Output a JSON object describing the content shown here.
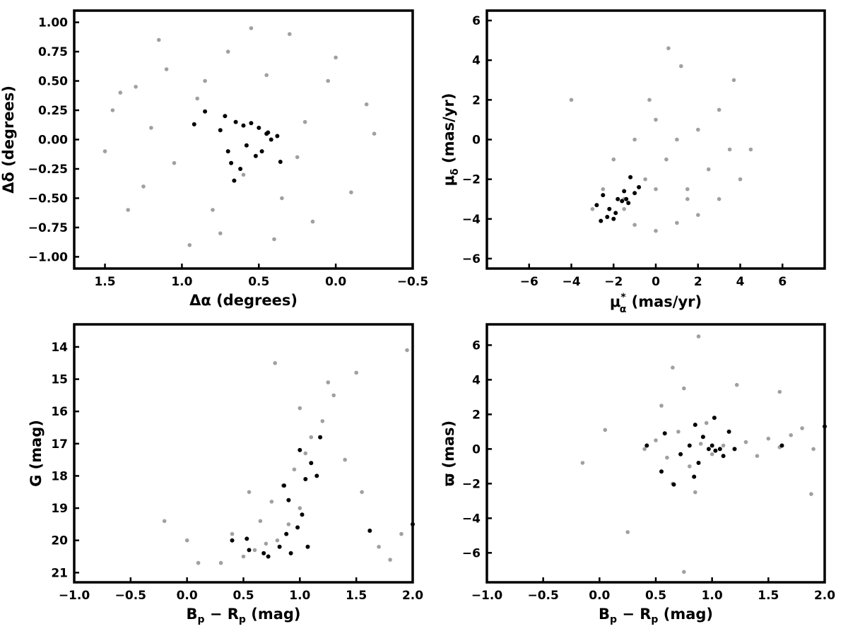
{
  "chart_data": [
    {
      "id": "sky",
      "type": "scatter",
      "xlabel": "Δα (degrees)",
      "ylabel": "Δδ (degrees)",
      "xlim": [
        1.7,
        -0.5
      ],
      "ylim": [
        -1.1,
        1.1
      ],
      "xticks": [
        1.5,
        1.0,
        0.5,
        0.0,
        -0.5
      ],
      "xtick_labels": [
        "1.5",
        "1.0",
        "0.5",
        "0.0",
        "−0.5"
      ],
      "yticks": [
        1.0,
        0.75,
        0.5,
        0.25,
        0.0,
        -0.25,
        -0.5,
        -0.75,
        -1.0
      ],
      "ytick_labels": [
        "1.00",
        "0.75",
        "0.50",
        "0.25",
        "0.00",
        "−0.25",
        "−0.50",
        "−0.75",
        "−1.00"
      ],
      "series": [
        {
          "color": "#a0a0a0",
          "x": [
            0.3,
            1.4,
            0.8,
            -0.2,
            1.1,
            0.95,
            0.15,
            0.55,
            1.25,
            0.05,
            1.5,
            0.4,
            0.7,
            1.2,
            -0.1,
            0.9,
            0.6,
            1.35,
            0.2,
            0.45,
            1.05,
            0.0,
            1.45,
            0.35,
            0.75,
            1.15,
            -0.25,
            0.85,
            0.25,
            1.3
          ],
          "y": [
            0.9,
            0.4,
            -0.6,
            0.3,
            0.6,
            -0.9,
            -0.7,
            0.95,
            -0.4,
            0.5,
            -0.1,
            -0.85,
            0.75,
            0.1,
            -0.45,
            0.35,
            -0.3,
            -0.6,
            0.15,
            0.55,
            -0.2,
            0.7,
            0.25,
            -0.5,
            -0.8,
            0.85,
            0.05,
            0.5,
            -0.15,
            0.45
          ]
        },
        {
          "color": "#000000",
          "x": [
            0.85,
            0.72,
            0.65,
            0.6,
            0.55,
            0.5,
            0.45,
            0.42,
            0.38,
            0.7,
            0.68,
            0.62,
            0.58,
            0.52,
            0.48,
            0.92,
            0.75,
            0.66,
            0.44,
            0.36
          ],
          "y": [
            0.24,
            0.2,
            0.15,
            0.12,
            0.14,
            0.1,
            0.05,
            0.0,
            0.03,
            -0.1,
            -0.2,
            -0.25,
            -0.05,
            -0.14,
            -0.1,
            0.13,
            0.08,
            -0.35,
            0.06,
            -0.19
          ]
        }
      ]
    },
    {
      "id": "pm",
      "type": "scatter",
      "xlabel": "μ",
      "xlabel_super": "*",
      "xlabel_sub": "α",
      "xlabel_tail": " (mas/yr)",
      "ylabel": "μ",
      "ylabel_sub": "δ",
      "ylabel_tail": " (mas/yr)",
      "xlim": [
        -8,
        8
      ],
      "ylim": [
        -6.5,
        6.5
      ],
      "xticks": [
        -6,
        -4,
        -2,
        0,
        2,
        4,
        6
      ],
      "xtick_labels": [
        "−6",
        "−4",
        "−2",
        "0",
        "2",
        "4",
        "6"
      ],
      "yticks": [
        6,
        4,
        2,
        0,
        -2,
        -4,
        -6
      ],
      "ytick_labels": [
        "6",
        "4",
        "2",
        "0",
        "−2",
        "−4",
        "−6"
      ],
      "series": [
        {
          "color": "#a0a0a0",
          "x": [
            -3,
            -2,
            -1,
            0,
            1,
            2,
            3,
            4,
            -2.5,
            -1.5,
            -0.5,
            0.5,
            1.5,
            2.5,
            3.5,
            -2,
            -1,
            0,
            1,
            2,
            3,
            -1.5,
            0,
            1.5,
            0.6,
            -0.3,
            3.7,
            -4,
            1.2,
            4.5
          ],
          "y": [
            -3.5,
            -4,
            -4.3,
            -4.6,
            -4.2,
            -3.8,
            -3,
            -2,
            -2.5,
            -3,
            -2,
            -1,
            -2.5,
            -1.5,
            -0.5,
            -1,
            0,
            1,
            0,
            0.5,
            1.5,
            -3.5,
            -2.5,
            -3,
            4.6,
            2,
            3,
            2,
            3.7,
            -0.5
          ]
        },
        {
          "color": "#000000",
          "x": [
            -2.5,
            -2.2,
            -2,
            -1.8,
            -1.5,
            -1.3,
            -1.2,
            -1,
            -0.8,
            -2.8,
            -2.3,
            -1.9,
            -1.6,
            -1.4,
            -2.6
          ],
          "y": [
            -2.8,
            -3.5,
            -4,
            -3,
            -2.6,
            -3.2,
            -1.9,
            -2.7,
            -2.4,
            -3.3,
            -3.9,
            -3.7,
            -3.1,
            -3.0,
            -4.1
          ]
        }
      ]
    },
    {
      "id": "cmd",
      "type": "scatter",
      "xlabel": "B",
      "xlabel_sub1": "p",
      "xlabel_mid": " − R",
      "xlabel_sub2": "p",
      "xlabel_tail": " (mag)",
      "ylabel": "G (mag)",
      "xlim": [
        -1.0,
        2.0
      ],
      "ylim": [
        21.3,
        13.3
      ],
      "xticks": [
        -1.0,
        -0.5,
        0.0,
        0.5,
        1.0,
        1.5,
        2.0
      ],
      "xtick_labels": [
        "−1.0",
        "−0.5",
        "0.0",
        "0.5",
        "1.0",
        "1.5",
        "2.0"
      ],
      "yticks": [
        21,
        20,
        19,
        18,
        17,
        16,
        15,
        14
      ],
      "ytick_labels": [
        "21",
        "20",
        "19",
        "18",
        "17",
        "16",
        "15",
        "14"
      ],
      "series": [
        {
          "color": "#a0a0a0",
          "x": [
            0.3,
            0.5,
            0.6,
            0.7,
            0.8,
            0.9,
            1.0,
            0.4,
            0.65,
            0.75,
            0.85,
            0.95,
            1.05,
            1.1,
            1.2,
            1.3,
            1.5,
            1.7,
            1.9,
            0.1,
            -0.2,
            0.0,
            0.55,
            0.78,
            1.0,
            1.25,
            1.4,
            1.55,
            1.8,
            1.95
          ],
          "y": [
            20.7,
            20.5,
            20.3,
            20.1,
            20.0,
            19.5,
            19.0,
            19.8,
            19.4,
            18.8,
            18.3,
            17.8,
            17.3,
            16.8,
            16.3,
            15.5,
            14.8,
            20.2,
            19.8,
            20.7,
            19.4,
            20.0,
            18.5,
            14.5,
            15.9,
            15.1,
            17.5,
            18.5,
            20.6,
            14.1
          ]
        },
        {
          "color": "#000000",
          "x": [
            0.4,
            0.55,
            0.68,
            0.72,
            0.82,
            0.88,
            0.92,
            0.98,
            1.02,
            1.05,
            1.1,
            1.15,
            1.18,
            0.86,
            1.0,
            1.62,
            2.0,
            0.53,
            0.9,
            1.07
          ],
          "y": [
            20.0,
            20.3,
            20.4,
            20.5,
            20.2,
            19.8,
            20.4,
            19.6,
            19.2,
            18.1,
            17.6,
            18.0,
            16.8,
            18.3,
            17.2,
            19.7,
            19.5,
            19.95,
            18.75,
            20.2
          ]
        }
      ]
    },
    {
      "id": "plx",
      "type": "scatter",
      "xlabel": "B",
      "xlabel_sub1": "p",
      "xlabel_mid": " − R",
      "xlabel_sub2": "p",
      "xlabel_tail": " (mag)",
      "ylabel": "ϖ (mas)",
      "xlim": [
        -1.0,
        2.0
      ],
      "ylim": [
        -7.7,
        7.2
      ],
      "xticks": [
        -1.0,
        -0.5,
        0.0,
        0.5,
        1.0,
        1.5,
        2.0
      ],
      "xtick_labels": [
        "−1.0",
        "−0.5",
        "0.0",
        "0.5",
        "1.0",
        "1.5",
        "2.0"
      ],
      "yticks": [
        6,
        4,
        2,
        0,
        -2,
        -4,
        -6
      ],
      "ytick_labels": [
        "6",
        "4",
        "2",
        "0",
        "−2",
        "−4",
        "−6"
      ],
      "series": [
        {
          "color": "#a0a0a0",
          "x": [
            0.4,
            0.5,
            0.6,
            0.7,
            0.8,
            0.9,
            1.0,
            1.1,
            1.2,
            1.3,
            1.4,
            1.5,
            1.6,
            1.7,
            1.8,
            1.9,
            0.55,
            0.65,
            0.75,
            0.85,
            0.95,
            -0.15,
            0.05,
            0.25,
            0.88,
            0.75,
            0.65,
            1.6,
            1.88,
            1.22
          ],
          "y": [
            0.0,
            0.5,
            -0.5,
            1.0,
            -1.0,
            0.3,
            -0.3,
            0.2,
            0.0,
            0.4,
            -0.4,
            0.6,
            0.1,
            0.8,
            1.2,
            0.0,
            2.5,
            -2.0,
            3.5,
            -2.5,
            1.5,
            -0.8,
            1.1,
            -4.8,
            6.5,
            -7.1,
            4.7,
            3.3,
            -2.6,
            3.7
          ]
        },
        {
          "color": "#000000",
          "x": [
            0.42,
            0.55,
            0.58,
            0.66,
            0.72,
            0.8,
            0.85,
            0.88,
            0.92,
            0.97,
            1.0,
            1.03,
            1.07,
            1.1,
            1.15,
            1.2,
            1.62,
            2.0,
            0.84,
            1.02
          ],
          "y": [
            0.2,
            -1.3,
            0.9,
            -2.05,
            -0.3,
            0.2,
            1.4,
            -0.8,
            0.7,
            0.0,
            0.2,
            -0.1,
            0.0,
            -0.4,
            1.0,
            0.0,
            0.2,
            1.3,
            -1.6,
            1.8
          ]
        }
      ]
    }
  ]
}
